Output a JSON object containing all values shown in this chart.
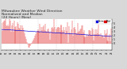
{
  "title": "Milwaukee Weather Wind Direction\nNormalized and Median\n(24 Hours) (New)",
  "background_color": "#d8d8d8",
  "plot_bg_color": "#ffffff",
  "num_points": 144,
  "y_min": -1.5,
  "y_max": 6.0,
  "yticks": [
    0,
    1,
    2,
    3,
    4,
    5
  ],
  "red_color": "#dd0000",
  "blue_color": "#0000dd",
  "grid_color": "#c0c0c0",
  "legend_blue_label": "Norm",
  "legend_red_label": "Med",
  "title_fontsize": 3.2,
  "tick_fontsize": 2.3,
  "seed": 17
}
